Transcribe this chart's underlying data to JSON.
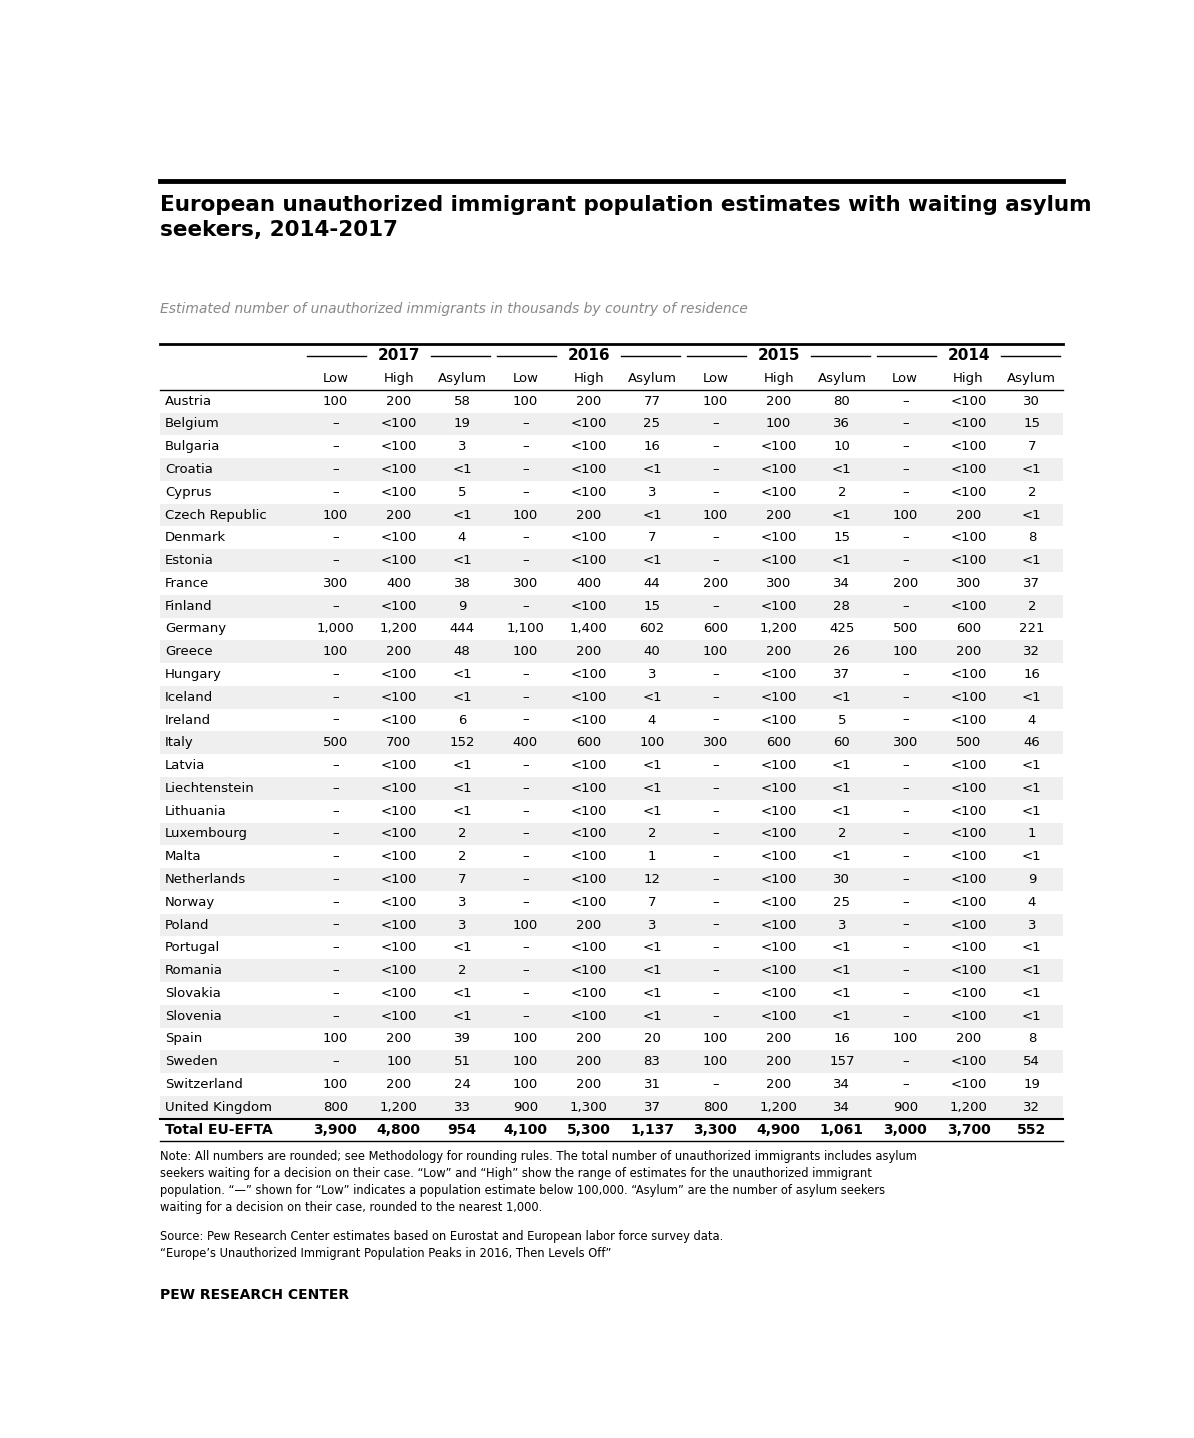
{
  "title": "European unauthorized immigrant population estimates with waiting asylum\nseekers, 2014-2017",
  "subtitle": "Estimated number of unauthorized immigrants in thousands by country of residence",
  "years": [
    "2017",
    "2016",
    "2015",
    "2014"
  ],
  "col_headers": [
    "Low",
    "High",
    "Asylum"
  ],
  "countries": [
    "Austria",
    "Belgium",
    "Bulgaria",
    "Croatia",
    "Cyprus",
    "Czech Republic",
    "Denmark",
    "Estonia",
    "France",
    "Finland",
    "Germany",
    "Greece",
    "Hungary",
    "Iceland",
    "Ireland",
    "Italy",
    "Latvia",
    "Liechtenstein",
    "Lithuania",
    "Luxembourg",
    "Malta",
    "Netherlands",
    "Norway",
    "Poland",
    "Portugal",
    "Romania",
    "Slovakia",
    "Slovenia",
    "Spain",
    "Sweden",
    "Switzerland",
    "United Kingdom"
  ],
  "data": {
    "Austria": [
      [
        "100",
        "200",
        "58"
      ],
      [
        "100",
        "200",
        "77"
      ],
      [
        "100",
        "200",
        "80"
      ],
      [
        "–",
        "<100",
        "30"
      ]
    ],
    "Belgium": [
      [
        "–",
        "<100",
        "19"
      ],
      [
        "–",
        "<100",
        "25"
      ],
      [
        "–",
        "100",
        "36"
      ],
      [
        "–",
        "<100",
        "15"
      ]
    ],
    "Bulgaria": [
      [
        "–",
        "<100",
        "3"
      ],
      [
        "–",
        "<100",
        "16"
      ],
      [
        "–",
        "<100",
        "10"
      ],
      [
        "–",
        "<100",
        "7"
      ]
    ],
    "Croatia": [
      [
        "–",
        "<100",
        "<1"
      ],
      [
        "–",
        "<100",
        "<1"
      ],
      [
        "–",
        "<100",
        "<1"
      ],
      [
        "–",
        "<100",
        "<1"
      ]
    ],
    "Cyprus": [
      [
        "–",
        "<100",
        "5"
      ],
      [
        "–",
        "<100",
        "3"
      ],
      [
        "–",
        "<100",
        "2"
      ],
      [
        "–",
        "<100",
        "2"
      ]
    ],
    "Czech Republic": [
      [
        "100",
        "200",
        "<1"
      ],
      [
        "100",
        "200",
        "<1"
      ],
      [
        "100",
        "200",
        "<1"
      ],
      [
        "100",
        "200",
        "<1"
      ]
    ],
    "Denmark": [
      [
        "–",
        "<100",
        "4"
      ],
      [
        "–",
        "<100",
        "7"
      ],
      [
        "–",
        "<100",
        "15"
      ],
      [
        "–",
        "<100",
        "8"
      ]
    ],
    "Estonia": [
      [
        "–",
        "<100",
        "<1"
      ],
      [
        "–",
        "<100",
        "<1"
      ],
      [
        "–",
        "<100",
        "<1"
      ],
      [
        "–",
        "<100",
        "<1"
      ]
    ],
    "France": [
      [
        "300",
        "400",
        "38"
      ],
      [
        "300",
        "400",
        "44"
      ],
      [
        "200",
        "300",
        "34"
      ],
      [
        "200",
        "300",
        "37"
      ]
    ],
    "Finland": [
      [
        "–",
        "<100",
        "9"
      ],
      [
        "–",
        "<100",
        "15"
      ],
      [
        "–",
        "<100",
        "28"
      ],
      [
        "–",
        "<100",
        "2"
      ]
    ],
    "Germany": [
      [
        "1,000",
        "1,200",
        "444"
      ],
      [
        "1,100",
        "1,400",
        "602"
      ],
      [
        "600",
        "1,200",
        "425"
      ],
      [
        "500",
        "600",
        "221"
      ]
    ],
    "Greece": [
      [
        "100",
        "200",
        "48"
      ],
      [
        "100",
        "200",
        "40"
      ],
      [
        "100",
        "200",
        "26"
      ],
      [
        "100",
        "200",
        "32"
      ]
    ],
    "Hungary": [
      [
        "–",
        "<100",
        "<1"
      ],
      [
        "–",
        "<100",
        "3"
      ],
      [
        "–",
        "<100",
        "37"
      ],
      [
        "–",
        "<100",
        "16"
      ]
    ],
    "Iceland": [
      [
        "–",
        "<100",
        "<1"
      ],
      [
        "–",
        "<100",
        "<1"
      ],
      [
        "–",
        "<100",
        "<1"
      ],
      [
        "–",
        "<100",
        "<1"
      ]
    ],
    "Ireland": [
      [
        "–",
        "<100",
        "6"
      ],
      [
        "–",
        "<100",
        "4"
      ],
      [
        "–",
        "<100",
        "5"
      ],
      [
        "–",
        "<100",
        "4"
      ]
    ],
    "Italy": [
      [
        "500",
        "700",
        "152"
      ],
      [
        "400",
        "600",
        "100"
      ],
      [
        "300",
        "600",
        "60"
      ],
      [
        "300",
        "500",
        "46"
      ]
    ],
    "Latvia": [
      [
        "–",
        "<100",
        "<1"
      ],
      [
        "–",
        "<100",
        "<1"
      ],
      [
        "–",
        "<100",
        "<1"
      ],
      [
        "–",
        "<100",
        "<1"
      ]
    ],
    "Liechtenstein": [
      [
        "–",
        "<100",
        "<1"
      ],
      [
        "–",
        "<100",
        "<1"
      ],
      [
        "–",
        "<100",
        "<1"
      ],
      [
        "–",
        "<100",
        "<1"
      ]
    ],
    "Lithuania": [
      [
        "–",
        "<100",
        "<1"
      ],
      [
        "–",
        "<100",
        "<1"
      ],
      [
        "–",
        "<100",
        "<1"
      ],
      [
        "–",
        "<100",
        "<1"
      ]
    ],
    "Luxembourg": [
      [
        "–",
        "<100",
        "2"
      ],
      [
        "–",
        "<100",
        "2"
      ],
      [
        "–",
        "<100",
        "2"
      ],
      [
        "–",
        "<100",
        "1"
      ]
    ],
    "Malta": [
      [
        "–",
        "<100",
        "2"
      ],
      [
        "–",
        "<100",
        "1"
      ],
      [
        "–",
        "<100",
        "<1"
      ],
      [
        "–",
        "<100",
        "<1"
      ]
    ],
    "Netherlands": [
      [
        "–",
        "<100",
        "7"
      ],
      [
        "–",
        "<100",
        "12"
      ],
      [
        "–",
        "<100",
        "30"
      ],
      [
        "–",
        "<100",
        "9"
      ]
    ],
    "Norway": [
      [
        "–",
        "<100",
        "3"
      ],
      [
        "–",
        "<100",
        "7"
      ],
      [
        "–",
        "<100",
        "25"
      ],
      [
        "–",
        "<100",
        "4"
      ]
    ],
    "Poland": [
      [
        "–",
        "<100",
        "3"
      ],
      [
        "100",
        "200",
        "3"
      ],
      [
        "–",
        "<100",
        "3"
      ],
      [
        "–",
        "<100",
        "3"
      ]
    ],
    "Portugal": [
      [
        "–",
        "<100",
        "<1"
      ],
      [
        "–",
        "<100",
        "<1"
      ],
      [
        "–",
        "<100",
        "<1"
      ],
      [
        "–",
        "<100",
        "<1"
      ]
    ],
    "Romania": [
      [
        "–",
        "<100",
        "2"
      ],
      [
        "–",
        "<100",
        "<1"
      ],
      [
        "–",
        "<100",
        "<1"
      ],
      [
        "–",
        "<100",
        "<1"
      ]
    ],
    "Slovakia": [
      [
        "–",
        "<100",
        "<1"
      ],
      [
        "–",
        "<100",
        "<1"
      ],
      [
        "–",
        "<100",
        "<1"
      ],
      [
        "–",
        "<100",
        "<1"
      ]
    ],
    "Slovenia": [
      [
        "–",
        "<100",
        "<1"
      ],
      [
        "–",
        "<100",
        "<1"
      ],
      [
        "–",
        "<100",
        "<1"
      ],
      [
        "–",
        "<100",
        "<1"
      ]
    ],
    "Spain": [
      [
        "100",
        "200",
        "39"
      ],
      [
        "100",
        "200",
        "20"
      ],
      [
        "100",
        "200",
        "16"
      ],
      [
        "100",
        "200",
        "8"
      ]
    ],
    "Sweden": [
      [
        "–",
        "100",
        "51"
      ],
      [
        "100",
        "200",
        "83"
      ],
      [
        "100",
        "200",
        "157"
      ],
      [
        "–",
        "<100",
        "54"
      ]
    ],
    "Switzerland": [
      [
        "100",
        "200",
        "24"
      ],
      [
        "100",
        "200",
        "31"
      ],
      [
        "–",
        "200",
        "34"
      ],
      [
        "–",
        "<100",
        "19"
      ]
    ],
    "United Kingdom": [
      [
        "800",
        "1,200",
        "33"
      ],
      [
        "900",
        "1,300",
        "37"
      ],
      [
        "800",
        "1,200",
        "34"
      ],
      [
        "900",
        "1,200",
        "32"
      ]
    ]
  },
  "totals": {
    "2017": [
      "3,900",
      "4,800",
      "954"
    ],
    "2016": [
      "4,100",
      "5,300",
      "1,137"
    ],
    "2015": [
      "3,300",
      "4,900",
      "1,061"
    ],
    "2014": [
      "3,000",
      "3,700",
      "552"
    ]
  },
  "note": "Note: All numbers are rounded; see Methodology for rounding rules. The total number of unauthorized immigrants includes asylum\nseekers waiting for a decision on their case. “Low” and “High” show the range of estimates for the unauthorized immigrant\npopulation. “—” shown for “Low” indicates a population estimate below 100,000. “Asylum” are the number of asylum seekers\nwaiting for a decision on their case, rounded to the nearest 1,000.",
  "source": "Source: Pew Research Center estimates based on Eurostat and European labor force survey data.\n“Europe’s Unauthorized Immigrant Population Peaks in 2016, Then Levels Off”",
  "attribution": "PEW RESEARCH CENTER",
  "bg_color_light": "#efefef",
  "bg_color_white": "#ffffff",
  "line_color": "#333333",
  "text_color": "#000000",
  "gray_text": "#888888"
}
